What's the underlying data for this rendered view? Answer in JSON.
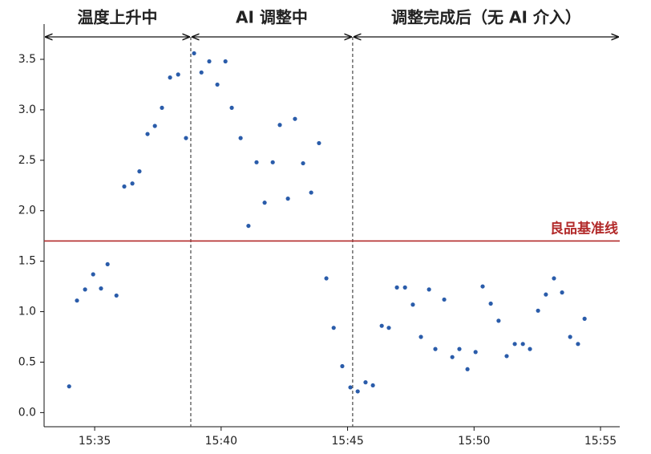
{
  "chart_data": {
    "type": "scatter",
    "color": "#2a5caa",
    "x": [
      933.99,
      934.3,
      934.62,
      934.94,
      935.25,
      935.51,
      935.86,
      936.17,
      936.49,
      936.77,
      937.09,
      937.38,
      937.66,
      937.98,
      938.3,
      938.61,
      938.93,
      939.22,
      939.53,
      939.85,
      940.17,
      940.42,
      940.77,
      941.08,
      941.4,
      941.72,
      942.04,
      942.32,
      942.64,
      942.92,
      943.24,
      943.56,
      943.87,
      944.16,
      944.45,
      944.79,
      945.11,
      945.4,
      945.71,
      946.0,
      946.35,
      946.63,
      946.95,
      947.27,
      947.58,
      947.9,
      948.22,
      948.47,
      948.82,
      949.14,
      949.42,
      949.74,
      950.06,
      950.34,
      950.66,
      950.97,
      951.29,
      951.61,
      951.93,
      952.21,
      952.53,
      952.84,
      953.16,
      953.48,
      953.8,
      954.11,
      954.37
    ],
    "values": [
      0.26,
      1.11,
      1.22,
      1.37,
      1.23,
      1.47,
      1.16,
      2.24,
      2.27,
      2.39,
      2.76,
      2.84,
      3.02,
      3.32,
      3.35,
      2.72,
      3.56,
      3.37,
      3.48,
      3.25,
      3.48,
      3.02,
      2.72,
      1.85,
      2.48,
      2.08,
      2.48,
      2.85,
      2.12,
      2.91,
      2.47,
      2.18,
      2.67,
      1.33,
      0.84,
      0.46,
      0.25,
      0.21,
      0.3,
      0.27,
      0.86,
      0.84,
      1.24,
      1.24,
      1.07,
      0.75,
      1.22,
      0.63,
      1.12,
      0.55,
      0.63,
      0.43,
      0.6,
      1.25,
      1.08,
      0.91,
      0.56,
      0.68,
      0.68,
      0.63,
      1.01,
      1.17,
      1.33,
      1.19,
      0.75,
      0.68,
      0.93
    ],
    "xlim": [
      933,
      955.76
    ],
    "xticks": [
      {
        "value": 935,
        "label": "15:35"
      },
      {
        "value": 940,
        "label": "15:40"
      },
      {
        "value": 945,
        "label": "15:45"
      },
      {
        "value": 950,
        "label": "15:50"
      },
      {
        "value": 955,
        "label": "15:55"
      }
    ],
    "ylim": [
      -0.14,
      3.77
    ],
    "yticks": [
      {
        "value": 0,
        "label": "0.0"
      },
      {
        "value": 0.5,
        "label": "0.5"
      },
      {
        "value": 1,
        "label": "1.0"
      },
      {
        "value": 1.5,
        "label": "1.5"
      },
      {
        "value": 2,
        "label": "2.0"
      },
      {
        "value": 2.5,
        "label": "2.5"
      },
      {
        "value": 3,
        "label": "3.0"
      },
      {
        "value": 3.5,
        "label": "3.5"
      }
    ],
    "phases": [
      "温度上升中",
      "AI 调整中",
      "调整完成后（无 AI 介入）"
    ],
    "dividers": [
      938.8,
      945.2
    ],
    "baseline": {
      "label": "良品基准线",
      "value": 1.7,
      "color": "#b22a2a"
    }
  }
}
